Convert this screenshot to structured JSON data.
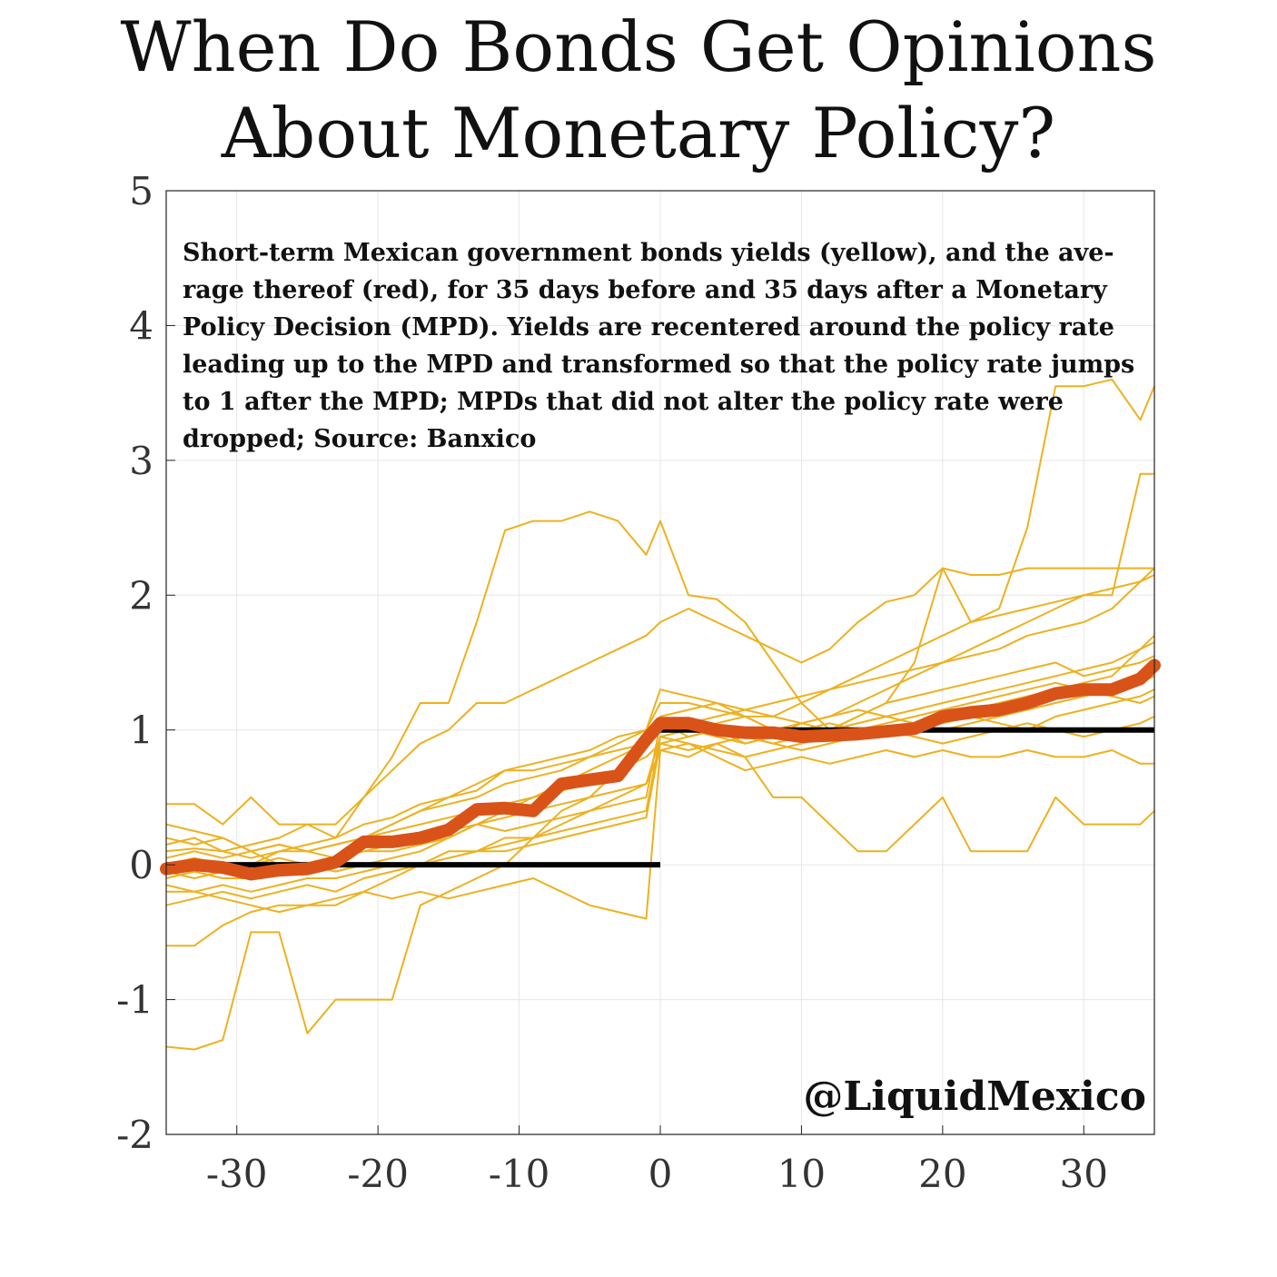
{
  "chart_data": {
    "type": "line",
    "title_lines": [
      "When Do Bonds Get Opinions",
      "About Monetary Policy?"
    ],
    "xlabel": "",
    "ylabel": "",
    "xlim": [
      -35,
      35
    ],
    "ylim": [
      -2,
      5
    ],
    "x_ticks": [
      "-30",
      "-20",
      "-10",
      "0",
      "10",
      "20",
      "30"
    ],
    "y_ticks": [
      "-2",
      "-1",
      "0",
      "1",
      "2",
      "3",
      "4",
      "5"
    ],
    "grid": true,
    "annotation_lines": [
      "Short-term Mexican government bonds yields (yellow), and the ave-",
      "rage thereof (red), for 35 days before and 35 days after a Monetary",
      "Policy Decision (MPD). Yields are recentered around the policy rate",
      "leading up to the MPD and transformed so that the policy rate jumps",
      "to 1 after the MPD; MPDs that did not alter the policy rate were",
      "dropped; Source: Banxico"
    ],
    "watermark": "@LiquidMexico",
    "colors": {
      "individual": "#EDB120",
      "average": "#D95319",
      "policy_rate": "#000000",
      "grid": "#e6e6e6"
    },
    "policy_rate_series": [
      {
        "x": [
          -35,
          0
        ],
        "y": [
          0,
          0
        ]
      },
      {
        "x": [
          0,
          35
        ],
        "y": [
          1,
          1
        ]
      }
    ],
    "series": [
      {
        "name": "average",
        "x": [
          -35,
          -33,
          -31,
          -29,
          -27,
          -25,
          -23,
          -21,
          -19,
          -17,
          -15,
          -13,
          -11,
          -9,
          -7,
          -5,
          -3,
          -1,
          0,
          2,
          4,
          6,
          8,
          10,
          12,
          14,
          16,
          18,
          20,
          22,
          24,
          26,
          28,
          30,
          32,
          34,
          35
        ],
        "y": [
          -0.03,
          0,
          -0.02,
          -0.07,
          -0.04,
          -0.03,
          0.02,
          0.17,
          0.17,
          0.2,
          0.26,
          0.41,
          0.42,
          0.4,
          0.6,
          0.63,
          0.66,
          0.93,
          1.05,
          1.05,
          1,
          0.98,
          0.98,
          0.95,
          0.96,
          0.97,
          0.99,
          1.01,
          1.1,
          1.13,
          1.15,
          1.2,
          1.27,
          1.3,
          1.3,
          1.38,
          1.48
        ]
      }
    ],
    "individual_series": [
      {
        "x": [
          -35,
          -33,
          -31,
          -29,
          -27,
          -25,
          -23,
          -21,
          -19,
          -17,
          -15,
          -13,
          -11,
          -9,
          -7,
          -5,
          -3,
          -1,
          0,
          2,
          4,
          6,
          8,
          10,
          12,
          14,
          16,
          18,
          20,
          22,
          24,
          26,
          28,
          30,
          32,
          34,
          35
        ],
        "y": [
          -1.35,
          -1.37,
          -1.3,
          -0.5,
          -0.5,
          -1.25,
          -1,
          -1,
          -1,
          -0.3,
          -0.2,
          -0.1,
          0,
          0.2,
          0.4,
          0.5,
          0.7,
          0.9,
          1.05,
          0.95,
          1,
          0.9,
          0.95,
          1.05,
          1,
          1.1,
          1.2,
          1.25,
          1.3,
          1.35,
          1.4,
          1.45,
          1.5,
          1.4,
          1.45,
          1.5,
          1.55
        ]
      },
      {
        "x": [
          -35,
          -33,
          -31,
          -29,
          -27,
          -25,
          -23,
          -21,
          -19,
          -17,
          -15,
          -13,
          -11,
          -9,
          -7,
          -5,
          -3,
          -1,
          0,
          2,
          4,
          6,
          8,
          10,
          12,
          14,
          16,
          18,
          20,
          22,
          24,
          26,
          28,
          30,
          32,
          34,
          35
        ],
        "y": [
          0.1,
          0.12,
          0.1,
          0.15,
          0.2,
          0.3,
          0.3,
          0.5,
          0.8,
          1.2,
          1.2,
          1.8,
          2.48,
          2.55,
          2.55,
          2.62,
          2.55,
          2.3,
          2.55,
          2,
          1.97,
          1.8,
          1.5,
          1.2,
          1,
          1.1,
          1.2,
          1.5,
          2.2,
          1.8,
          1.9,
          2.5,
          3.55,
          3.55,
          3.6,
          3.3,
          3.55
        ]
      },
      {
        "x": [
          -35,
          -33,
          -31,
          -29,
          -27,
          -25,
          -23,
          -21,
          -19,
          -17,
          -15,
          -13,
          -11,
          -9,
          -7,
          -5,
          -3,
          -1,
          0,
          2,
          4,
          6,
          8,
          10,
          12,
          14,
          16,
          18,
          20,
          22,
          24,
          26,
          28,
          30,
          32,
          34,
          35
        ],
        "y": [
          -0.6,
          -0.6,
          -0.45,
          -0.35,
          -0.3,
          -0.3,
          -0.25,
          -0.2,
          -0.1,
          0,
          0.1,
          0.1,
          0.2,
          0.2,
          0.3,
          0.4,
          0.5,
          0.6,
          0.85,
          0.8,
          0.9,
          0.8,
          0.5,
          0.5,
          0.3,
          0.1,
          0.1,
          0.3,
          0.5,
          0.1,
          0.1,
          0.1,
          0.5,
          0.3,
          0.3,
          0.3,
          0.4
        ]
      },
      {
        "x": [
          -35,
          -33,
          -31,
          -29,
          -27,
          -25,
          -23,
          -21,
          -19,
          -17,
          -15,
          -13,
          -11,
          -9,
          -7,
          -5,
          -3,
          -1,
          0,
          2,
          4,
          6,
          8,
          10,
          12,
          14,
          16,
          18,
          20,
          22,
          24,
          26,
          28,
          30,
          32,
          34,
          35
        ],
        "y": [
          0.45,
          0.45,
          0.3,
          0.5,
          0.3,
          0.3,
          0.2,
          0.5,
          0.7,
          0.9,
          1,
          1.2,
          1.2,
          1.3,
          1.4,
          1.5,
          1.6,
          1.7,
          1.8,
          1.9,
          1.8,
          1.7,
          1.6,
          1.5,
          1.6,
          1.8,
          1.95,
          2,
          2.2,
          2.15,
          2.15,
          2.2,
          2.2,
          2.2,
          2.2,
          2.2,
          2.2
        ]
      },
      {
        "x": [
          -35,
          -33,
          -31,
          -29,
          -27,
          -25,
          -23,
          -21,
          -19,
          -17,
          -15,
          -13,
          -11,
          -9,
          -7,
          -5,
          -3,
          -1,
          0,
          2,
          4,
          6,
          8,
          10,
          12,
          14,
          16,
          18,
          20,
          22,
          24,
          26,
          28,
          30,
          32,
          34,
          35
        ],
        "y": [
          0.3,
          0.25,
          0.2,
          0.1,
          0,
          0,
          0.05,
          0.2,
          0.3,
          0.4,
          0.5,
          0.55,
          0.7,
          0.7,
          0.75,
          0.8,
          0.9,
          1,
          1.2,
          1.2,
          1.15,
          1.1,
          1.1,
          1.05,
          1.1,
          1.2,
          1.3,
          1.4,
          1.5,
          1.6,
          1.7,
          1.8,
          1.9,
          2,
          2,
          2.9,
          2.9
        ]
      },
      {
        "x": [
          -35,
          -33,
          -31,
          -29,
          -27,
          -25,
          -23,
          -21,
          -19,
          -17,
          -15,
          -13,
          -11,
          -9,
          -7,
          -5,
          -3,
          -1,
          0,
          2,
          4,
          6,
          8,
          10,
          12,
          14,
          16,
          18,
          20,
          22,
          24,
          26,
          28,
          30,
          32,
          34,
          35
        ],
        "y": [
          -0.2,
          -0.2,
          -0.25,
          -0.3,
          -0.35,
          -0.3,
          -0.3,
          -0.2,
          -0.25,
          -0.2,
          -0.25,
          -0.2,
          -0.15,
          -0.1,
          -0.2,
          -0.3,
          -0.35,
          -0.4,
          0.85,
          0.9,
          0.8,
          0.7,
          0.75,
          0.8,
          0.75,
          0.8,
          0.85,
          0.8,
          0.85,
          0.8,
          0.8,
          0.85,
          0.8,
          0.8,
          0.85,
          0.75,
          0.75
        ]
      },
      {
        "x": [
          -35,
          -33,
          -31,
          -29,
          -27,
          -25,
          -23,
          -21,
          -19,
          -17,
          -15,
          -13,
          -11,
          -9,
          -7,
          -5,
          -3,
          -1,
          0,
          2,
          4,
          6,
          8,
          10,
          12,
          14,
          16,
          18,
          20,
          22,
          24,
          26,
          28,
          30,
          32,
          34,
          35
        ],
        "y": [
          0,
          0.05,
          0,
          0,
          0.1,
          0.1,
          0.15,
          0.2,
          0.3,
          0.4,
          0.45,
          0.5,
          0.6,
          0.65,
          0.7,
          0.8,
          0.85,
          0.9,
          1,
          1.05,
          1.1,
          1.15,
          1.2,
          1.25,
          1.3,
          1.35,
          1.4,
          1.45,
          1.5,
          1.55,
          1.6,
          1.7,
          1.75,
          1.8,
          1.9,
          2.1,
          2.15
        ]
      },
      {
        "x": [
          -35,
          -33,
          -31,
          -29,
          -27,
          -25,
          -23,
          -21,
          -19,
          -17,
          -15,
          -13,
          -11,
          -9,
          -7,
          -5,
          -3,
          -1,
          0,
          2,
          4,
          6,
          8,
          10,
          12,
          14,
          16,
          18,
          20,
          22,
          24,
          26,
          28,
          30,
          32,
          34,
          35
        ],
        "y": [
          -0.1,
          -0.05,
          -0.1,
          -0.1,
          -0.05,
          0,
          -0.05,
          0,
          0.05,
          0.1,
          0.2,
          0.3,
          0.35,
          0.4,
          0.45,
          0.5,
          0.55,
          0.6,
          0.95,
          1,
          1.05,
          1.1,
          1,
          0.95,
          1,
          1.05,
          1.1,
          1.15,
          1.2,
          1.25,
          1.3,
          1.35,
          1.4,
          1.45,
          1.5,
          1.6,
          1.65
        ]
      },
      {
        "x": [
          -35,
          -33,
          -31,
          -29,
          -27,
          -25,
          -23,
          -21,
          -19,
          -17,
          -15,
          -13,
          -11,
          -9,
          -7,
          -5,
          -3,
          -1,
          0,
          2,
          4,
          6,
          8,
          10,
          12,
          14,
          16,
          18,
          20,
          22,
          24,
          26,
          28,
          30,
          32,
          34,
          35
        ],
        "y": [
          0.2,
          0.15,
          0.2,
          0.1,
          0.15,
          0.1,
          0.05,
          0.1,
          0.15,
          0.2,
          0.25,
          0.3,
          0.4,
          0.5,
          0.55,
          0.6,
          0.7,
          0.8,
          0.9,
          0.95,
          1,
          0.95,
          0.9,
          0.95,
          1,
          1.05,
          1.1,
          1.05,
          1,
          1.05,
          1.1,
          1.15,
          1.2,
          1.25,
          1.3,
          1.35,
          1.4
        ]
      },
      {
        "x": [
          -35,
          -33,
          -31,
          -29,
          -27,
          -25,
          -23,
          -21,
          -19,
          -17,
          -15,
          -13,
          -11,
          -9,
          -7,
          -5,
          -3,
          -1,
          0,
          2,
          4,
          6,
          8,
          10,
          12,
          14,
          16,
          18,
          20,
          22,
          24,
          26,
          28,
          30,
          32,
          34,
          35
        ],
        "y": [
          -0.05,
          -0.1,
          -0.05,
          0,
          0.05,
          0,
          0.05,
          0.1,
          0.1,
          0.15,
          0.2,
          0.3,
          0.25,
          0.3,
          0.35,
          0.4,
          0.45,
          0.5,
          1.05,
          1,
          0.95,
          0.9,
          0.95,
          1,
          1.05,
          1,
          0.95,
          1,
          1.05,
          1.1,
          1.05,
          1,
          1.1,
          1.15,
          1.2,
          1.25,
          1.3
        ]
      },
      {
        "x": [
          -35,
          -33,
          -31,
          -29,
          -27,
          -25,
          -23,
          -21,
          -19,
          -17,
          -15,
          -13,
          -11,
          -9,
          -7,
          -5,
          -3,
          -1,
          0,
          2,
          4,
          6,
          8,
          10,
          12,
          14,
          16,
          18,
          20,
          22,
          24,
          26,
          28,
          30,
          32,
          34,
          35
        ],
        "y": [
          0.05,
          0.1,
          0.05,
          0.1,
          0.15,
          0.1,
          0.15,
          0.2,
          0.25,
          0.3,
          0.35,
          0.4,
          0.45,
          0.5,
          0.6,
          0.7,
          0.8,
          0.9,
          1.1,
          1.15,
          1.2,
          1.1,
          1,
          1.05,
          1.1,
          1.15,
          1.1,
          1.05,
          1.1,
          1.15,
          1.2,
          1.25,
          1.3,
          1.35,
          1.4,
          1.6,
          1.7
        ]
      },
      {
        "x": [
          -35,
          -33,
          -31,
          -29,
          -27,
          -25,
          -23,
          -21,
          -19,
          -17,
          -15,
          -13,
          -11,
          -9,
          -7,
          -5,
          -3,
          -1,
          0,
          2,
          4,
          6,
          8,
          10,
          12,
          14,
          16,
          18,
          20,
          22,
          24,
          26,
          28,
          30,
          32,
          34,
          35
        ],
        "y": [
          -0.15,
          -0.2,
          -0.15,
          -0.2,
          -0.15,
          -0.1,
          -0.1,
          -0.05,
          0,
          0,
          0.05,
          0.1,
          0.1,
          0.15,
          0.2,
          0.25,
          0.3,
          0.35,
          0.9,
          0.85,
          0.9,
          0.95,
          0.9,
          0.85,
          0.9,
          0.95,
          1,
          0.95,
          0.9,
          0.95,
          1,
          1.05,
          1,
          0.95,
          1,
          1.05,
          1.1
        ]
      },
      {
        "x": [
          -35,
          -33,
          -31,
          -29,
          -27,
          -25,
          -23,
          -21,
          -19,
          -17,
          -15,
          -13,
          -11,
          -9,
          -7,
          -5,
          -3,
          -1,
          0,
          2,
          4,
          6,
          8,
          10,
          12,
          14,
          16,
          18,
          20,
          22,
          24,
          26,
          28,
          30,
          32,
          34,
          35
        ],
        "y": [
          0.15,
          0.2,
          0.1,
          0.05,
          0.1,
          0.15,
          0.2,
          0.3,
          0.35,
          0.45,
          0.5,
          0.6,
          0.7,
          0.75,
          0.8,
          0.85,
          0.95,
          1,
          1.3,
          1.25,
          1.2,
          1.15,
          1.1,
          1.2,
          1.3,
          1.4,
          1.5,
          1.6,
          1.7,
          1.8,
          1.85,
          1.9,
          1.95,
          2,
          2.05,
          2.1,
          2.2
        ]
      },
      {
        "x": [
          -35,
          -33,
          -31,
          -29,
          -27,
          -25,
          -23,
          -21,
          -19,
          -17,
          -15,
          -13,
          -11,
          -9,
          -7,
          -5,
          -3,
          -1,
          0,
          2,
          4,
          6,
          8,
          10,
          12,
          14,
          16,
          18,
          20,
          22,
          24,
          26,
          28,
          30,
          32,
          34,
          35
        ],
        "y": [
          -0.3,
          -0.25,
          -0.2,
          -0.25,
          -0.2,
          -0.15,
          -0.2,
          -0.1,
          -0.05,
          0,
          0.05,
          0.1,
          0.15,
          0.2,
          0.25,
          0.3,
          0.35,
          0.4,
          0.95,
          0.9,
          0.85,
          0.8,
          0.85,
          0.9,
          0.95,
          1,
          1.05,
          1.1,
          1.15,
          1.2,
          1.25,
          1.3,
          1.35,
          1.3,
          1.25,
          1.2,
          1.25
        ]
      }
    ]
  }
}
